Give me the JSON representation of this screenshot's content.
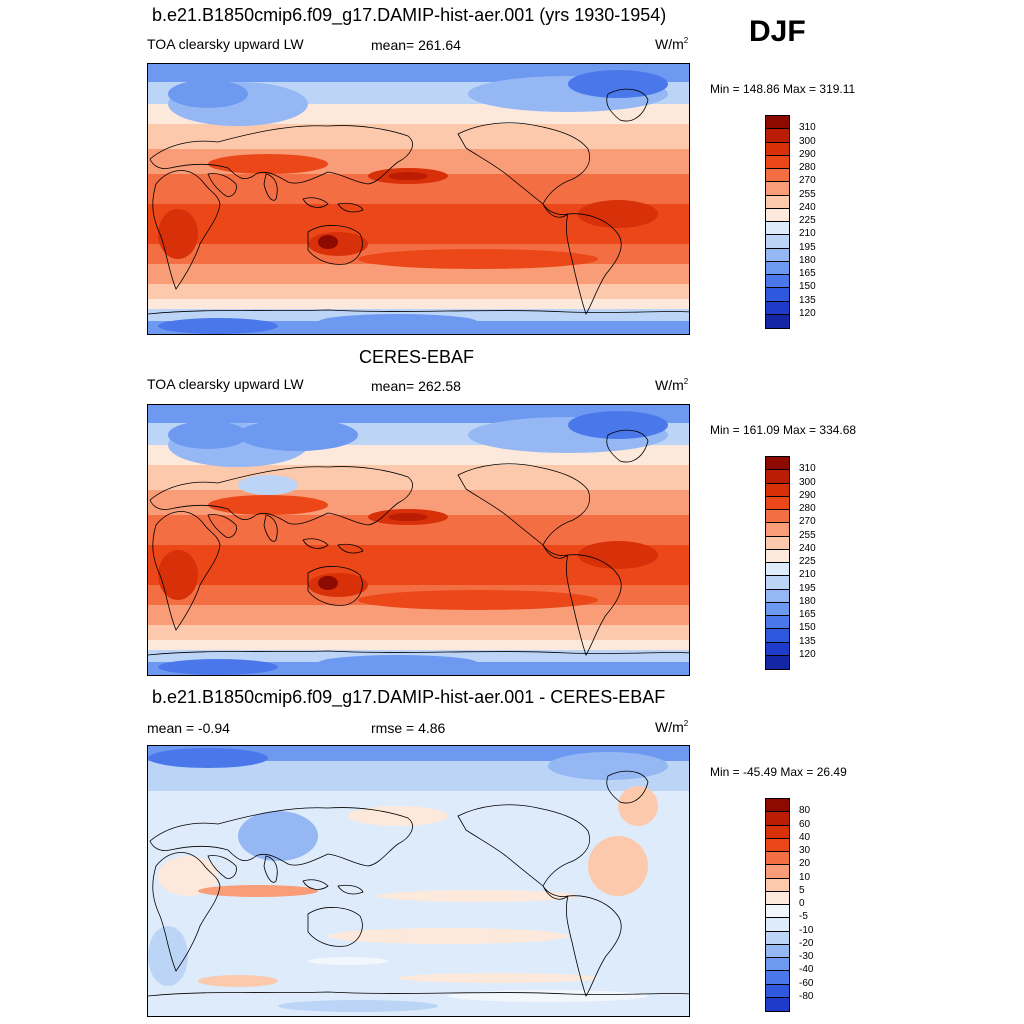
{
  "season": "DJF",
  "colors": {
    "warm": [
      "#fde9dc",
      "#fcc9ad",
      "#f99d78",
      "#f46e44",
      "#eb4718",
      "#d83008",
      "#bb1d04",
      "#8c0a00"
    ],
    "cool": [
      "#deebfa",
      "#bcd4f6",
      "#95b8f4",
      "#6e99f1",
      "#4a78ea",
      "#2e59df",
      "#1e3cc9",
      "#1526a5",
      "#0a0a80"
    ],
    "diff_warm": [
      "#fde9dc",
      "#fcc9ad",
      "#f99d78",
      "#f46e44",
      "#eb4718",
      "#d83008",
      "#bb1d04",
      "#8c0a00"
    ],
    "diff_cool": [
      "#f2f7fd",
      "#deebfa",
      "#bcd4f6",
      "#95b8f4",
      "#6e99f1",
      "#4a78ea",
      "#2e59df",
      "#1e3cc9",
      "#0a0a80"
    ]
  },
  "panels": [
    {
      "title": "b.e21.B1850cmip6.f09_g17.DAMIP-hist-aer.001 (yrs 1930-1954)",
      "variable": "TOA clearsky upward LW",
      "stat": "mean= 261.64",
      "units": "W/m",
      "units_sup": "2",
      "minmax": "Min = 148.86 Max = 319.11",
      "ticks": [
        "310",
        "300",
        "290",
        "280",
        "270",
        "255",
        "240",
        "225",
        "210",
        "195",
        "180",
        "165",
        "150",
        "135",
        "120"
      ]
    },
    {
      "title": "CERES-EBAF",
      "variable": "TOA clearsky upward LW",
      "stat": "mean= 262.58",
      "units": "W/m",
      "units_sup": "2",
      "minmax": "Min = 161.09 Max = 334.68",
      "ticks": [
        "310",
        "300",
        "290",
        "280",
        "270",
        "255",
        "240",
        "225",
        "210",
        "195",
        "180",
        "165",
        "150",
        "135",
        "120"
      ]
    },
    {
      "title": "b.e21.B1850cmip6.f09_g17.DAMIP-hist-aer.001 - CERES-EBAF",
      "stat_left": "mean =  -0.94",
      "stat": "rmse =   4.86",
      "units": "W/m",
      "units_sup": "2",
      "minmax": "Min = -45.49 Max =  26.49",
      "ticks": [
        "80",
        "60",
        "40",
        "30",
        "20",
        "10",
        "5",
        "0",
        "-5",
        "-10",
        "-20",
        "-30",
        "-40",
        "-60",
        "-80"
      ]
    }
  ],
  "chart_data": [
    {
      "type": "heatmap",
      "title": "b.e21.B1850cmip6.f09_g17.DAMIP-hist-aer.001 (yrs 1930-1954)",
      "variable": "TOA clearsky upward LW",
      "units": "W/m2",
      "mean": 261.64,
      "min": 148.86,
      "max": 319.11,
      "levels": [
        120,
        135,
        150,
        165,
        180,
        195,
        210,
        225,
        240,
        255,
        270,
        280,
        290,
        300,
        310
      ]
    },
    {
      "type": "heatmap",
      "title": "CERES-EBAF",
      "variable": "TOA clearsky upward LW",
      "units": "W/m2",
      "mean": 262.58,
      "min": 161.09,
      "max": 334.68,
      "levels": [
        120,
        135,
        150,
        165,
        180,
        195,
        210,
        225,
        240,
        255,
        270,
        280,
        290,
        300,
        310
      ]
    },
    {
      "type": "heatmap",
      "title": "b.e21.B1850cmip6.f09_g17.DAMIP-hist-aer.001 - CERES-EBAF",
      "units": "W/m2",
      "mean": -0.94,
      "rmse": 4.86,
      "min": -45.49,
      "max": 26.49,
      "levels": [
        -80,
        -60,
        -40,
        -30,
        -20,
        -10,
        -5,
        0,
        5,
        10,
        20,
        30,
        40,
        60,
        80
      ]
    }
  ]
}
